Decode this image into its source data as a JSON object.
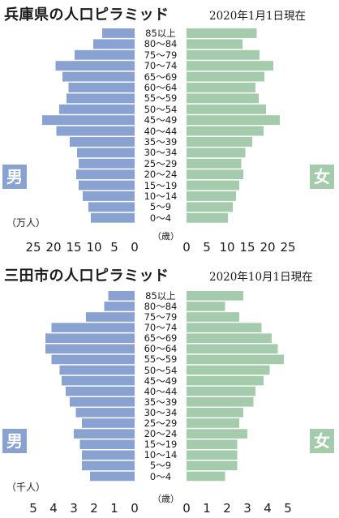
{
  "charts": [
    {
      "title": "兵庫県の人口ピラミッド",
      "date": "2020年1月1日現在",
      "unit": "（万人）",
      "sai_label": "（歳）",
      "male_label": "男",
      "female_label": "女",
      "male_ticks": [
        "25",
        "20",
        "15",
        "10",
        "5",
        "0"
      ],
      "female_ticks": [
        "0",
        "5",
        "10",
        "15",
        "20",
        "25"
      ]
    },
    {
      "title": "三田市の人口ピラミッド",
      "date": "2020年10月1日現在",
      "unit": "（千人）",
      "sai_label": "（歳）",
      "male_label": "男",
      "female_label": "女",
      "male_ticks": [
        "5",
        "4",
        "3",
        "2",
        "1",
        "0"
      ],
      "female_ticks": [
        "0",
        "1",
        "2",
        "3",
        "4",
        "5"
      ]
    }
  ],
  "colors": {
    "male": "#8aa2d1",
    "female": "#a4ccac",
    "stroke": "#ffffff"
  },
  "chart_data": [
    {
      "type": "bar",
      "orientation": "horizontal-pyramid",
      "title": "兵庫県の人口ピラミッド",
      "unit": "万人",
      "xlim": [
        0,
        25
      ],
      "categories": [
        "85以上",
        "80～84",
        "75～79",
        "70～74",
        "65～69",
        "60～64",
        "55～59",
        "50～54",
        "45～49",
        "40～44",
        "35～39",
        "30～34",
        "25～29",
        "20～24",
        "15～19",
        "10～14",
        "5～9",
        "0～4"
      ],
      "series": [
        {
          "name": "男",
          "values": [
            8.0,
            10.2,
            14.8,
            19.5,
            17.8,
            16.3,
            16.8,
            18.6,
            22.8,
            19.3,
            16.0,
            14.2,
            13.8,
            14.4,
            13.8,
            12.8,
            11.4,
            10.8
          ]
        },
        {
          "name": "女",
          "values": [
            17.3,
            13.8,
            18.0,
            21.4,
            19.2,
            17.0,
            17.8,
            19.6,
            23.0,
            19.0,
            16.2,
            14.5,
            13.5,
            14.0,
            13.0,
            12.2,
            11.4,
            10.2
          ]
        }
      ]
    },
    {
      "type": "bar",
      "orientation": "horizontal-pyramid",
      "title": "三田市の人口ピラミッド",
      "unit": "千人",
      "xlim": [
        0,
        5
      ],
      "categories": [
        "85以上",
        "80～84",
        "75～79",
        "70～74",
        "65～69",
        "60～64",
        "55～59",
        "50～54",
        "45～49",
        "40～44",
        "35～39",
        "30～34",
        "25～29",
        "20～24",
        "15～19",
        "10～14",
        "5～9",
        "0～4"
      ],
      "series": [
        {
          "name": "男",
          "values": [
            1.3,
            1.5,
            2.4,
            4.1,
            4.4,
            4.4,
            4.1,
            3.7,
            3.6,
            3.4,
            3.2,
            2.9,
            2.6,
            3.0,
            2.7,
            2.6,
            2.6,
            2.2
          ]
        },
        {
          "name": "女",
          "values": [
            2.8,
            1.9,
            2.6,
            3.7,
            4.2,
            4.5,
            4.8,
            4.1,
            3.8,
            3.4,
            3.3,
            2.8,
            2.6,
            3.0,
            2.5,
            2.5,
            2.5,
            1.9
          ]
        }
      ]
    }
  ]
}
